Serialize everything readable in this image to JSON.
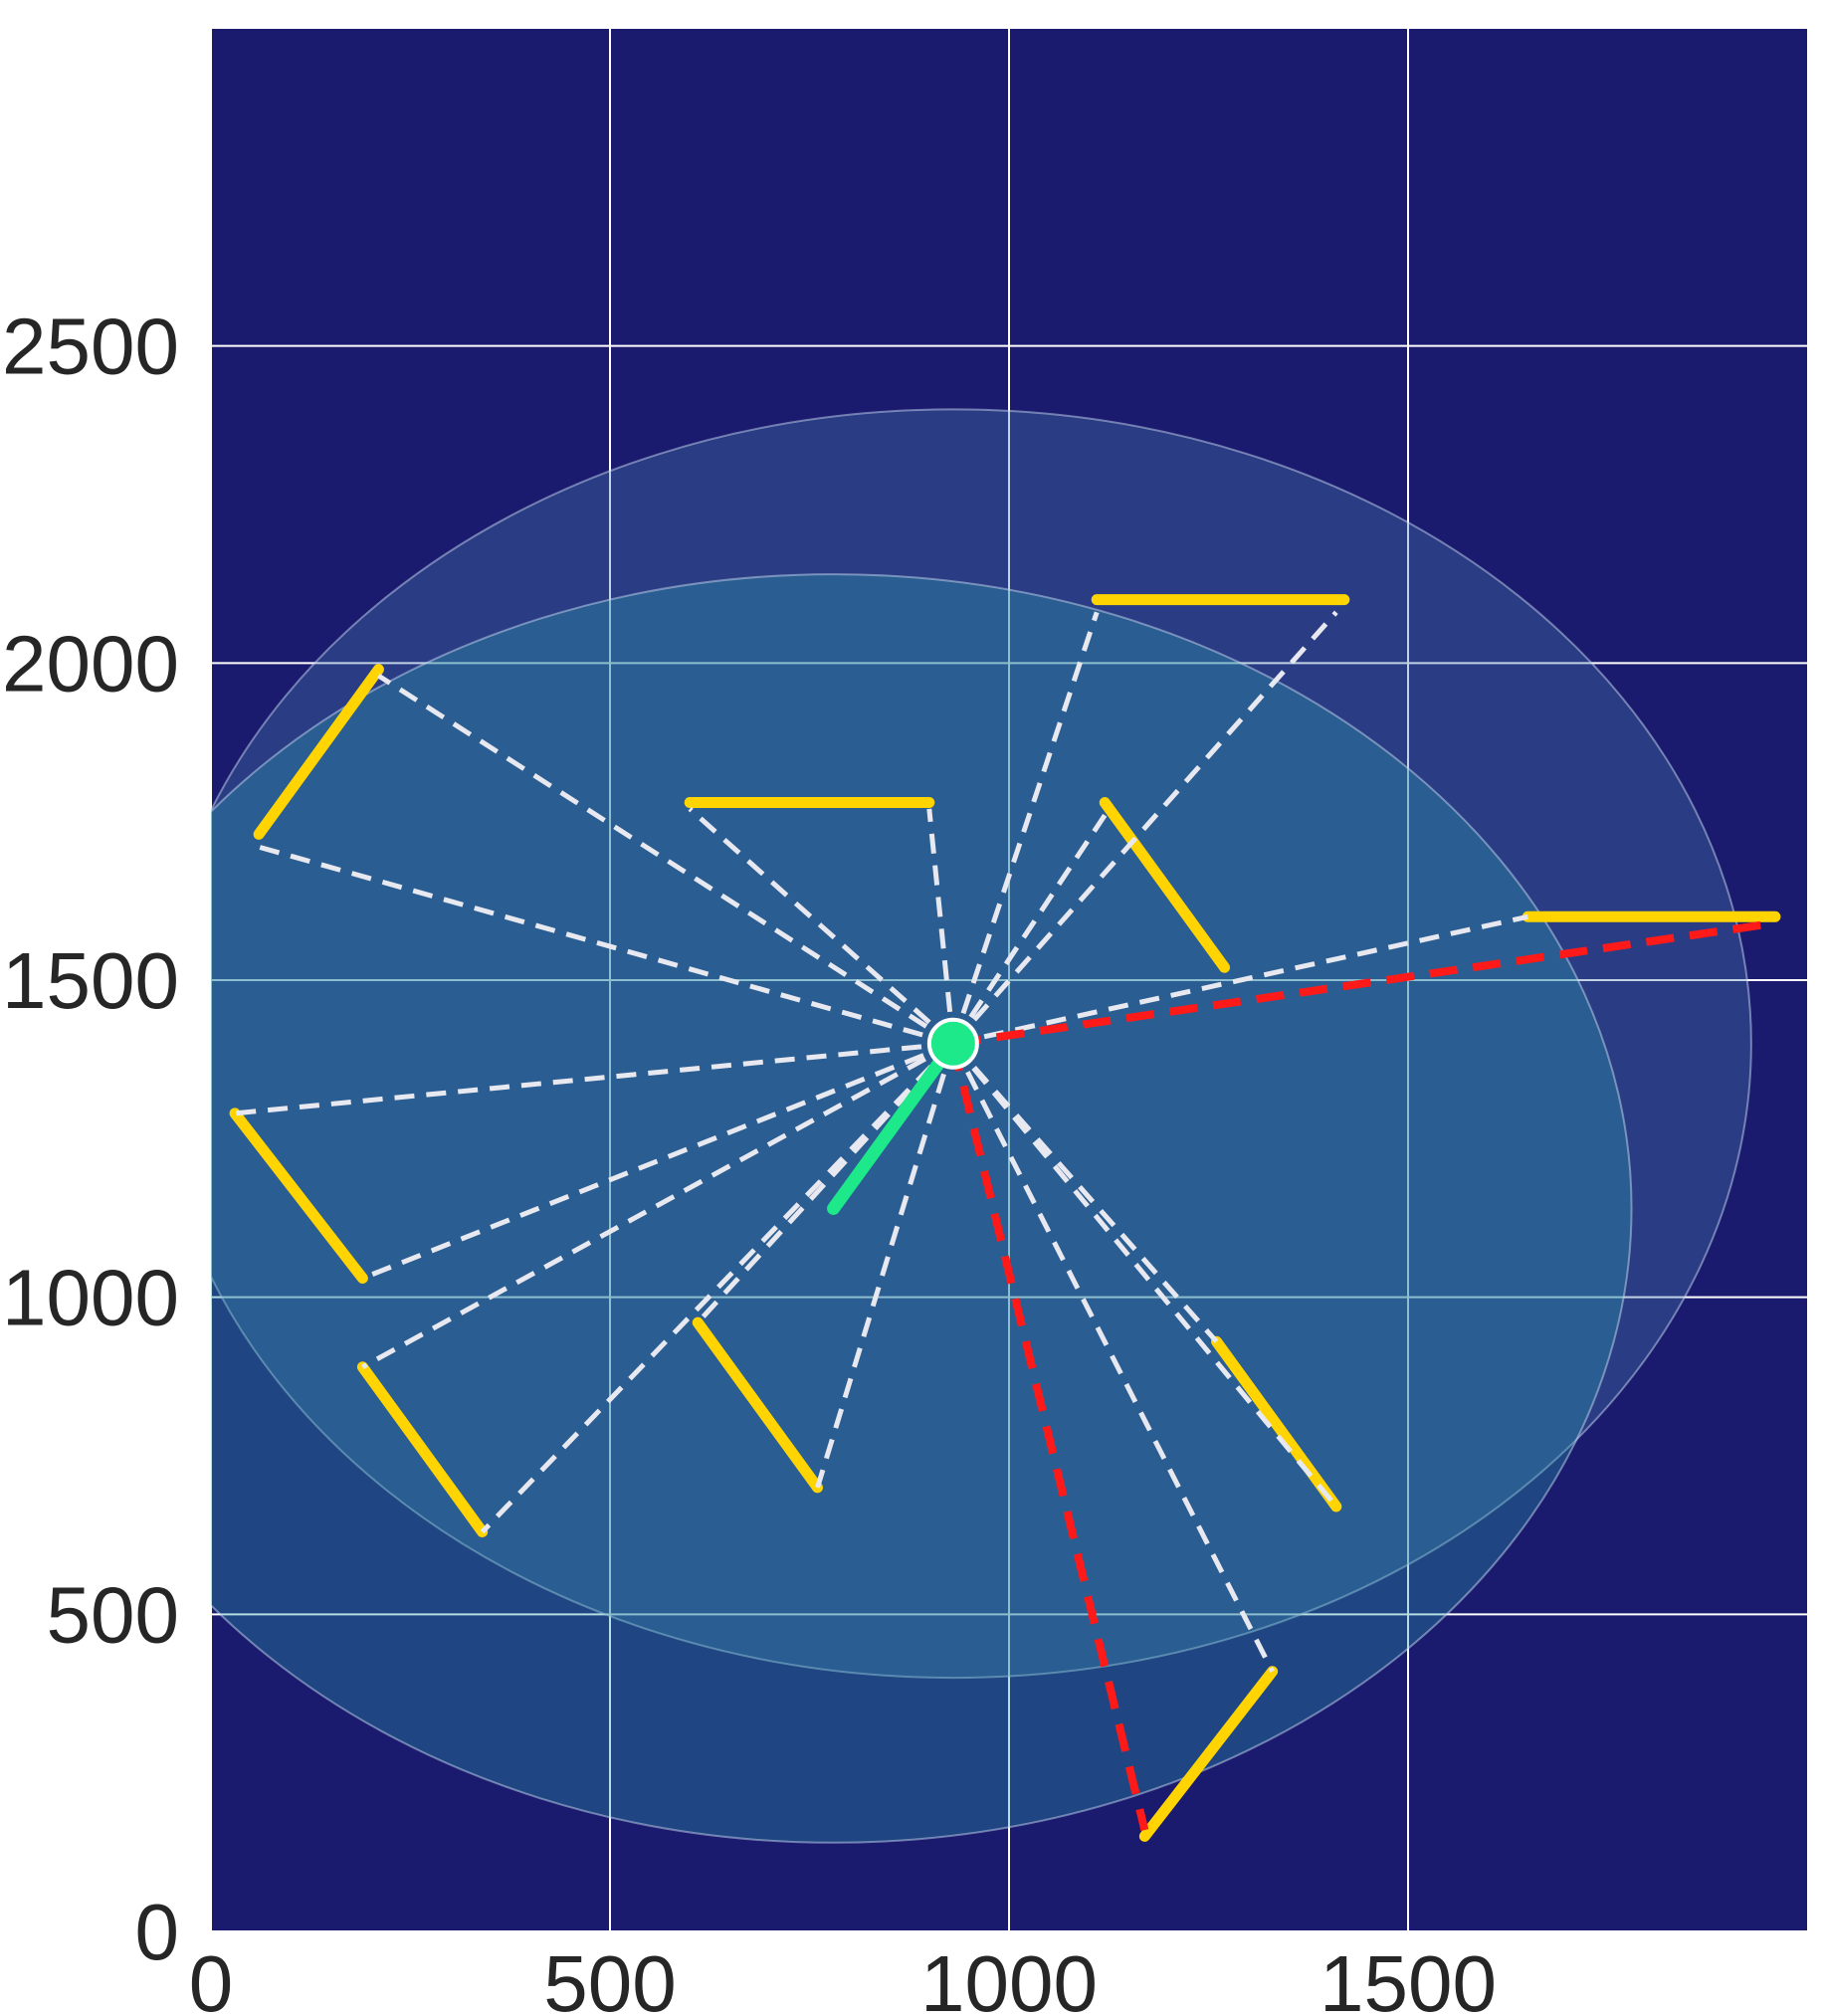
{
  "chart_data": {
    "type": "robot_map",
    "xlim": [
      0,
      2000
    ],
    "ylim": [
      0,
      3000
    ],
    "xticks": [
      0,
      500,
      1000,
      1500
    ],
    "yticks": [
      0,
      500,
      1000,
      1500,
      2000,
      2500
    ],
    "grid": true,
    "background": "#1a1a6e",
    "circles": [
      {
        "x": 930,
        "y": 1400,
        "r": 1000,
        "color": "#4a7fb0"
      },
      {
        "x": 780,
        "y": 1140,
        "r": 1000,
        "color": "#2a9aa8"
      }
    ],
    "walls": {
      "color": "#ffd400",
      "x1": [
        1110,
        600,
        60,
        1120,
        1650,
        30,
        190,
        610,
        1260,
        1170
      ],
      "y1": [
        2100,
        1780,
        1730,
        1780,
        1600,
        1290,
        890,
        960,
        930,
        150
      ],
      "x2": [
        1420,
        900,
        210,
        1270,
        1960,
        190,
        340,
        760,
        1410,
        1330
      ],
      "y2": [
        2100,
        1780,
        1990,
        1520,
        1600,
        1030,
        630,
        700,
        670,
        410
      ]
    },
    "rays": {
      "color": "#e8e8f0",
      "x": [
        1110,
        1410,
        600,
        900,
        210,
        60,
        1120,
        1650,
        30,
        190,
        190,
        340,
        610,
        760,
        1260,
        1410,
        1330
      ],
      "y": [
        2080,
        2080,
        1770,
        1770,
        1980,
        1710,
        1760,
        1600,
        1290,
        1030,
        890,
        630,
        960,
        700,
        930,
        670,
        410
      ]
    },
    "highlighted_rays": {
      "color": "#ff1a1a",
      "x": [
        1960,
        1170
      ],
      "y": [
        1590,
        160
      ]
    },
    "robot": {
      "x": 930,
      "y": 1400,
      "color": "#1de88a"
    },
    "heading": {
      "x": 780,
      "y": 1140,
      "color": "#1de88a"
    }
  }
}
